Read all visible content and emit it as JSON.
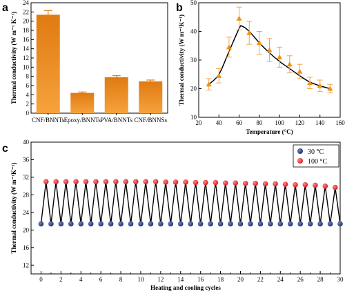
{
  "panels": {
    "a": "a",
    "b": "b",
    "c": "c"
  },
  "colors": {
    "bar_top": "#e07a12",
    "bar_bottom": "#f6a23c",
    "line": "#000000",
    "marker_b": "#f29111",
    "error_b": "#f0a64a",
    "dot_30": "#1d2f6b",
    "dot_100": "#d8141a"
  },
  "chart_data": [
    {
      "panel": "a",
      "type": "bar",
      "categories": [
        "CNF/BNNTs",
        "Epoxy/BNNTs",
        "PVA/BNNTs",
        "CNF/BNNSs"
      ],
      "values": [
        21.4,
        4.4,
        7.8,
        6.9
      ],
      "errors": [
        0.9,
        0.2,
        0.35,
        0.3
      ],
      "ylabel": "Thermal conductivity (W m⁻¹ K⁻¹)",
      "ylim": [
        0,
        24
      ],
      "yticks": [
        0,
        2,
        4,
        6,
        8,
        10,
        12,
        14,
        16,
        18,
        20,
        22,
        24
      ]
    },
    {
      "panel": "b",
      "type": "line",
      "x": [
        30,
        40,
        50,
        60,
        70,
        80,
        90,
        100,
        110,
        120,
        130,
        140,
        150
      ],
      "y": [
        21.5,
        24.5,
        34.5,
        44.5,
        39.5,
        36,
        33.5,
        31,
        28.5,
        26,
        22,
        21,
        20
      ],
      "errors": [
        2,
        2.5,
        3.5,
        4,
        4,
        4,
        4,
        3.5,
        3,
        2.5,
        2,
        2,
        1.5
      ],
      "fit_x": [
        30,
        40,
        50,
        60,
        63,
        70,
        80,
        90,
        100,
        110,
        120,
        130,
        140,
        150
      ],
      "fit_y": [
        21.5,
        25,
        33,
        41,
        41.8,
        40,
        36,
        32.5,
        29.5,
        27,
        24.5,
        22.3,
        21,
        20
      ],
      "xlabel": "Temperature (°C)",
      "ylabel": "Thermal conductivity (W m⁻¹K⁻¹)",
      "xlim": [
        20,
        160
      ],
      "ylim": [
        10,
        50
      ],
      "xticks": [
        20,
        40,
        60,
        80,
        100,
        120,
        140,
        160
      ],
      "yticks": [
        10,
        20,
        30,
        40,
        50
      ]
    },
    {
      "panel": "c",
      "type": "line",
      "x": [
        0,
        1,
        2,
        3,
        4,
        5,
        6,
        7,
        8,
        9,
        10,
        11,
        12,
        13,
        14,
        15,
        16,
        17,
        18,
        19,
        20,
        21,
        22,
        23,
        24,
        25,
        26,
        27,
        28,
        29,
        30
      ],
      "series": [
        {
          "name": "30 °C",
          "x": [
            0,
            1,
            2,
            3,
            4,
            5,
            6,
            7,
            8,
            9,
            10,
            11,
            12,
            13,
            14,
            15,
            16,
            17,
            18,
            19,
            20,
            21,
            22,
            23,
            24,
            25,
            26,
            27,
            28,
            29,
            30
          ],
          "values": [
            21.4,
            21.4,
            21.4,
            21.4,
            21.4,
            21.4,
            21.4,
            21.4,
            21.4,
            21.4,
            21.4,
            21.4,
            21.4,
            21.4,
            21.4,
            21.4,
            21.4,
            21.4,
            21.4,
            21.4,
            21.4,
            21.4,
            21.4,
            21.4,
            21.4,
            21.4,
            21.4,
            21.4,
            21.4,
            21.4,
            21.4
          ]
        },
        {
          "name": "100 °C",
          "x": [
            0.5,
            1.5,
            2.5,
            3.5,
            4.5,
            5.5,
            6.5,
            7.5,
            8.5,
            9.5,
            10.5,
            11.5,
            12.5,
            13.5,
            14.5,
            15.5,
            16.5,
            17.5,
            18.5,
            19.5,
            20.5,
            21.5,
            22.5,
            23.5,
            24.5,
            25.5,
            26.5,
            27.5,
            28.5,
            29.5
          ],
          "values": [
            31.0,
            31.0,
            31.0,
            31.0,
            31.0,
            31.0,
            31.0,
            31.0,
            31.0,
            31.0,
            31.0,
            31.0,
            30.9,
            30.9,
            30.9,
            30.8,
            30.8,
            30.8,
            30.7,
            30.7,
            30.6,
            30.6,
            30.5,
            30.5,
            30.4,
            30.3,
            30.3,
            30.2,
            30.0,
            29.7
          ]
        }
      ],
      "xlabel": "Heating and cooling cycles",
      "ylabel": "Thermal conductivity (W m⁻¹K⁻¹)",
      "xlim": [
        -1,
        30
      ],
      "ylim": [
        10,
        40
      ],
      "xticks": [
        0,
        2,
        4,
        6,
        8,
        10,
        12,
        14,
        16,
        18,
        20,
        22,
        24,
        26,
        28,
        30
      ],
      "yticks": [
        12,
        16,
        20,
        24,
        28,
        32,
        36,
        40
      ],
      "legend": "top-right"
    }
  ]
}
